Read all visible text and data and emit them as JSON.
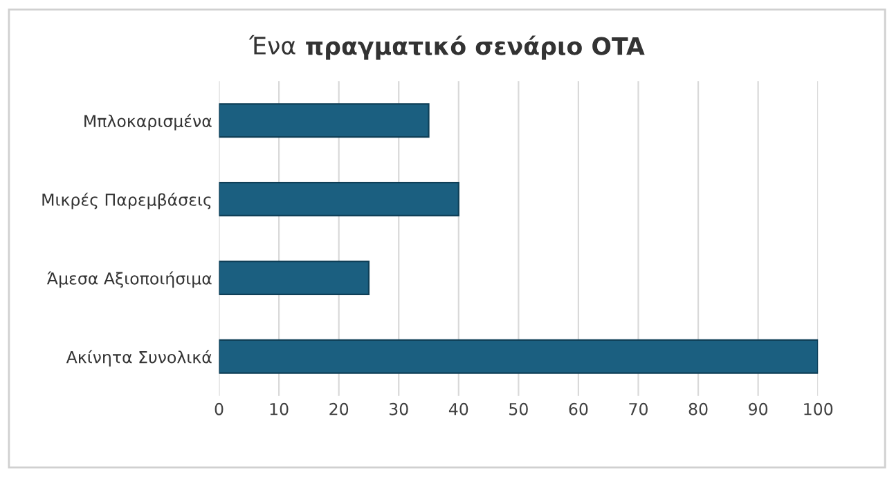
{
  "chart_data": {
    "type": "bar",
    "orientation": "horizontal",
    "title": "Ένα πραγματικό σενάριο OTA",
    "categories": [
      "Μπλοκαρισμένα",
      "Μικρές Παρεμβάσεις",
      "Άμεσα Αξιοποιήσιμα",
      "Ακίνητα Συνολικά"
    ],
    "values": [
      35,
      40,
      25,
      100
    ],
    "color": "#1b5f80",
    "xlim": [
      0,
      100
    ],
    "xticks": [
      0,
      10,
      20,
      30,
      40,
      50,
      60,
      70,
      80,
      90,
      100
    ],
    "grid": "x",
    "legend": false
  }
}
